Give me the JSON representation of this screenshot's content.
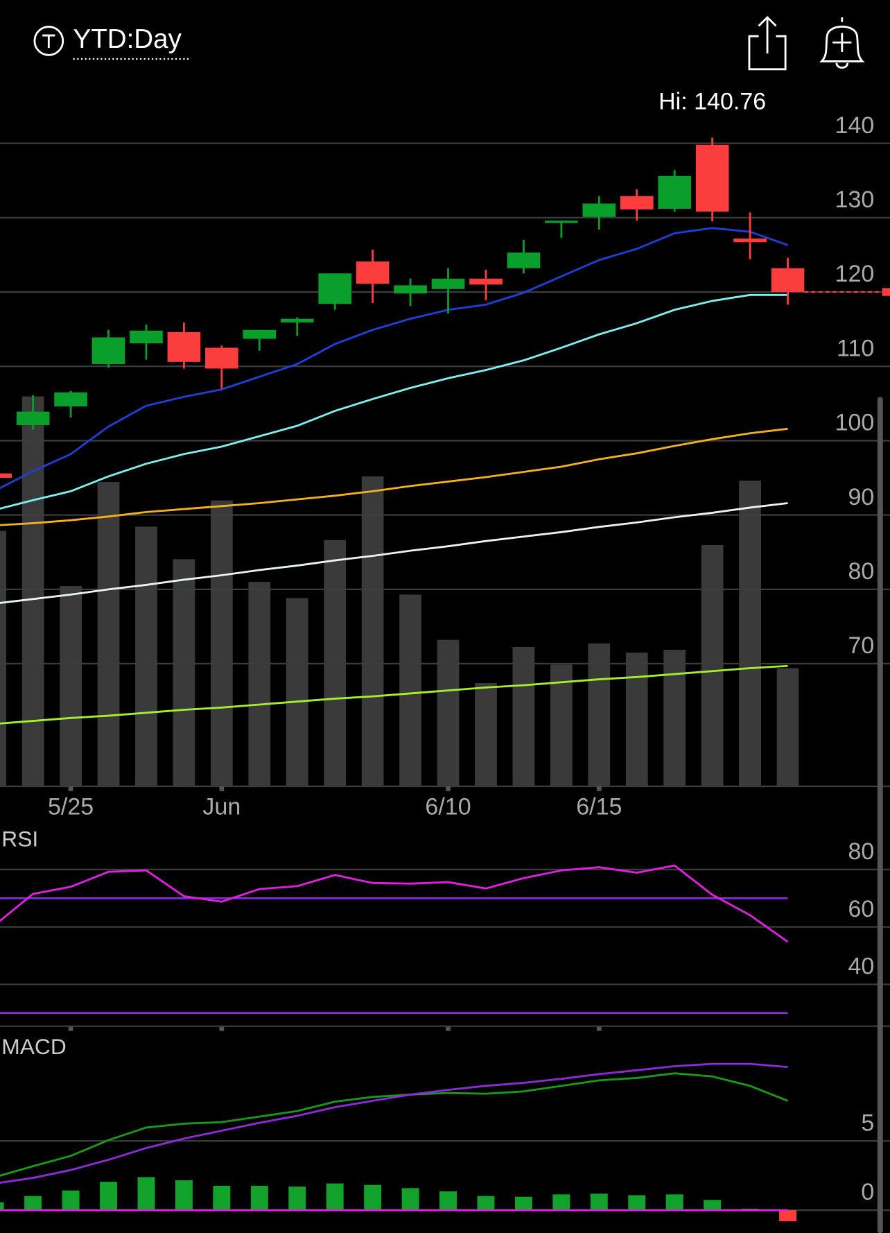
{
  "chart_data": [
    {
      "type": "candlestick",
      "title": "YTD:Day",
      "hi_label": "Hi: 140.76",
      "categories": [
        null,
        null,
        "5/25",
        null,
        null,
        null,
        "Jun",
        null,
        null,
        null,
        null,
        null,
        "6/10",
        null,
        null,
        null,
        "6/15",
        null,
        null,
        null,
        null,
        null
      ],
      "open": [
        95.6,
        102.1,
        104.6,
        110.3,
        113.1,
        114.6,
        112.5,
        113.7,
        115.9,
        118.4,
        124.1,
        119.8,
        120.4,
        121.8,
        123.2,
        129.3,
        130.1,
        132.9,
        131.2,
        139.8,
        127.2,
        123.2
      ],
      "high": [
        95.8,
        106.1,
        106.7,
        114.9,
        115.6,
        115.9,
        112.8,
        114.9,
        116.6,
        122.5,
        125.7,
        121.8,
        123.2,
        123.0,
        127.0,
        129.6,
        132.9,
        133.8,
        136.4,
        140.76,
        130.7,
        124.6
      ],
      "low": [
        94.8,
        101.5,
        103.1,
        109.8,
        110.9,
        109.7,
        107.0,
        112.1,
        114.1,
        117.6,
        118.5,
        118.1,
        117.1,
        118.9,
        122.5,
        127.3,
        128.4,
        129.6,
        130.8,
        129.5,
        124.4,
        118.3
      ],
      "close": [
        95.0,
        103.9,
        106.5,
        113.9,
        114.8,
        110.6,
        109.7,
        114.9,
        116.4,
        122.5,
        121.1,
        120.9,
        121.8,
        121.0,
        125.3,
        129.6,
        131.9,
        131.1,
        135.6,
        130.8,
        126.7,
        120.0
      ],
      "up_color": "#0a9e2a",
      "down_color": "#fc3d3d",
      "series": [
        {
          "color": "#1f3fd6",
          "values": [
            93.3,
            95.9,
            98.2,
            101.9,
            104.7,
            105.9,
            106.9,
            108.6,
            110.3,
            113.0,
            114.9,
            116.4,
            117.6,
            118.3,
            119.9,
            122.1,
            124.3,
            125.8,
            127.9,
            128.6,
            128.1,
            126.3
          ]
        },
        {
          "color": "#7ff0f0",
          "values": [
            90.7,
            92.0,
            93.2,
            95.2,
            96.9,
            98.2,
            99.2,
            100.6,
            102.0,
            104.0,
            105.6,
            107.1,
            108.4,
            109.5,
            110.8,
            112.5,
            114.3,
            115.8,
            117.6,
            118.8,
            119.6,
            119.6
          ]
        },
        {
          "color": "#f5b21e",
          "values": [
            88.6,
            88.9,
            89.3,
            89.8,
            90.4,
            90.8,
            91.2,
            91.6,
            92.1,
            92.6,
            93.2,
            93.9,
            94.5,
            95.1,
            95.8,
            96.5,
            97.5,
            98.3,
            99.3,
            100.2,
            101.0,
            101.6
          ]
        },
        {
          "color": "#e8f4f8",
          "values": [
            78.1,
            78.7,
            79.3,
            80.0,
            80.6,
            81.3,
            81.9,
            82.6,
            83.2,
            83.9,
            84.5,
            85.2,
            85.8,
            86.5,
            87.1,
            87.7,
            88.4,
            89.0,
            89.7,
            90.3,
            91.0,
            91.6
          ]
        },
        {
          "color": "#a6f02a",
          "values": [
            61.9,
            62.3,
            62.7,
            63.0,
            63.4,
            63.8,
            64.1,
            64.5,
            64.9,
            65.3,
            65.6,
            66.0,
            66.4,
            66.8,
            67.1,
            67.5,
            67.9,
            68.2,
            68.6,
            69.0,
            69.4,
            69.7
          ]
        },
        {
          "color": "#3a3a3a",
          "axis": "y2",
          "values": [
            36.1,
            55.1,
            28.3,
            43.0,
            36.7,
            32.1,
            40.4,
            28.9,
            26.6,
            34.8,
            43.8,
            27.1,
            20.7,
            14.6,
            19.7,
            17.2,
            20.2,
            18.9,
            19.3,
            34.1,
            43.2,
            16.7
          ]
        }
      ],
      "ylim": [
        53.5,
        148.7
      ],
      "yticks": [
        70,
        80,
        90,
        100,
        110,
        120,
        130,
        140
      ],
      "y2lim": [
        0,
        100
      ],
      "grid": true
    },
    {
      "type": "line",
      "title": "RSI",
      "series": [
        {
          "color": "#e020e0",
          "values": [
            60.8,
            71.5,
            74.0,
            79.2,
            79.7,
            70.7,
            68.8,
            73.2,
            74.2,
            78.1,
            75.3,
            75.1,
            75.6,
            73.4,
            77.0,
            79.7,
            80.8,
            78.9,
            81.4,
            71.2,
            64.1,
            54.8
          ]
        }
      ],
      "reference_lines": [
        70,
        30
      ],
      "reference_color": "#8c2bd8",
      "ylim": [
        25.4,
        92
      ],
      "yticks": [
        40,
        60,
        80
      ],
      "grid": true
    },
    {
      "type": "macd",
      "title": "MACD",
      "series": [
        {
          "color": "#1a9a1a",
          "values": [
            2.39,
            3.18,
            3.92,
            5.06,
            5.97,
            6.25,
            6.36,
            6.76,
            7.16,
            7.84,
            8.18,
            8.35,
            8.47,
            8.41,
            8.58,
            8.98,
            9.38,
            9.55,
            9.89,
            9.66,
            8.98,
            7.9
          ]
        },
        {
          "color": "#8c2bd8",
          "values": [
            1.93,
            2.33,
            2.9,
            3.64,
            4.49,
            5.17,
            5.74,
            6.31,
            6.82,
            7.44,
            7.9,
            8.35,
            8.69,
            8.98,
            9.2,
            9.49,
            9.83,
            10.11,
            10.4,
            10.57,
            10.57,
            10.34
          ]
        }
      ],
      "histogram": [
        0.57,
        1.02,
        1.42,
        2.05,
        2.39,
        2.16,
        1.76,
        1.76,
        1.7,
        1.93,
        1.82,
        1.59,
        1.36,
        1.02,
        0.97,
        1.14,
        1.19,
        1.08,
        1.14,
        0.74,
        0.11,
        -0.8
      ],
      "up_color": "#12a12b",
      "down_color": "#fc3d3d",
      "zero_color": "#e020e0",
      "ylim": [
        -1.65,
        12.44
      ],
      "yticks": [
        0,
        5
      ],
      "grid": true
    }
  ]
}
